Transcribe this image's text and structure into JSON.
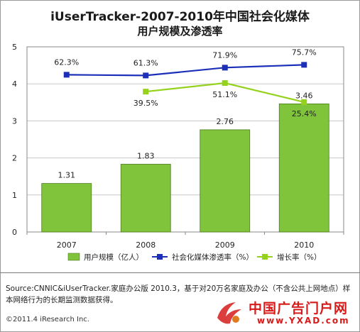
{
  "title_line1": "iUserTracker-2007-2010年中国社会化媒体",
  "title_line2": "用户规模及渗透率",
  "chart_data": {
    "type": "bar",
    "categories": [
      "2007",
      "2008",
      "2009",
      "2010"
    ],
    "ylim": [
      0,
      5
    ],
    "yticks": [
      "0",
      "1",
      "2",
      "3",
      "4",
      "5"
    ],
    "y2lim": [
      -150,
      100
    ],
    "grid": true,
    "legend_placement": "bottom",
    "series": [
      {
        "name": "用户规模（亿人）",
        "kind": "bar",
        "color": "#80c43c",
        "values": [
          1.31,
          1.83,
          2.76,
          3.46
        ],
        "labels": [
          "1.31",
          "1.83",
          "2.76",
          "3.46"
        ]
      },
      {
        "name": "社会化媒体渗透率（%）",
        "kind": "line",
        "color": "#1c2fb8",
        "values": [
          62.3,
          61.3,
          71.9,
          75.7
        ],
        "labels": [
          "62.3%",
          "61.3%",
          "71.9%",
          "75.7%"
        ]
      },
      {
        "name": "增长率（%）",
        "kind": "line",
        "color": "#94d21c",
        "values": [
          null,
          39.5,
          51.1,
          25.4
        ],
        "labels": [
          null,
          "39.5%",
          "51.1%",
          "25.4%"
        ]
      }
    ]
  },
  "footer": {
    "source": "Source:CNNIC&iUserTracker.家庭办公版 2010.3，基于对20万名家庭及办公（不含公共上网地点）样本网络行为的长期监测数据获得。",
    "copyright": "©2011.4 iResearch Inc."
  },
  "watermark": {
    "text": "中国广告门户网",
    "url": "www.YXAD.com",
    "color": "#d61b1b"
  }
}
